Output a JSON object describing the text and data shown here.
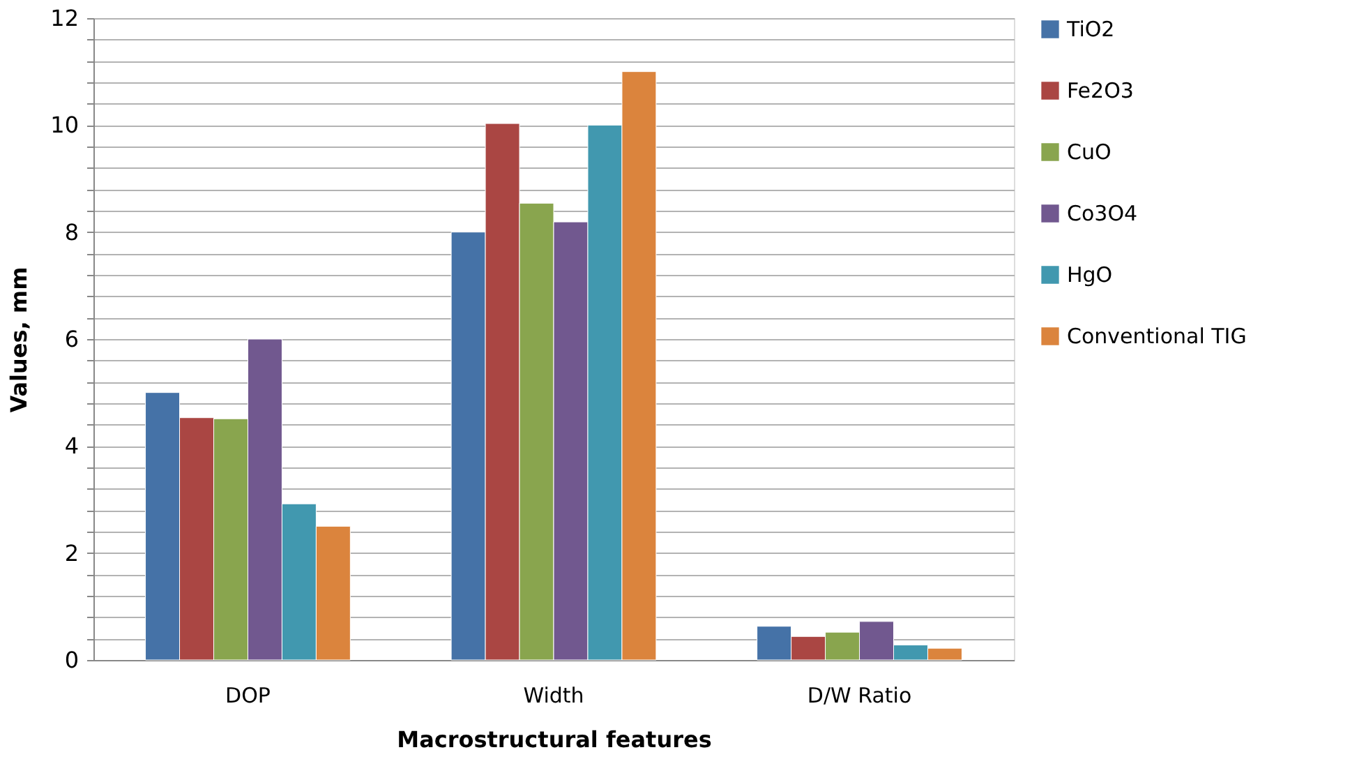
{
  "chart_data": {
    "type": "bar",
    "xlabel": "Macrostructural features",
    "ylabel": "Values, mm",
    "categories": [
      "DOP",
      "Width",
      "D/W Ratio"
    ],
    "series": [
      {
        "name": "TiO2",
        "color": "#4572a7",
        "values": [
          5.0,
          8.0,
          0.63
        ]
      },
      {
        "name": "Fe2O3",
        "color": "#aa4643",
        "values": [
          4.53,
          10.03,
          0.44
        ]
      },
      {
        "name": "CuO",
        "color": "#89a54e",
        "values": [
          4.51,
          8.54,
          0.52
        ]
      },
      {
        "name": "Co3O4",
        "color": "#71588f",
        "values": [
          6.0,
          8.19,
          0.72
        ]
      },
      {
        "name": "HgO",
        "color": "#4198af",
        "values": [
          2.92,
          10.0,
          0.28
        ]
      },
      {
        "name": "Conventional TIG",
        "color": "#db843d",
        "values": [
          2.5,
          11.0,
          0.22
        ]
      }
    ],
    "ylim": [
      0,
      12
    ],
    "yticks": [
      0,
      {
        "value": 0.4,
        "label": null
      },
      {
        "value": 0.8,
        "label": null
      },
      {
        "value": 1.2,
        "label": null
      },
      {
        "value": 1.6,
        "label": null
      },
      2,
      {
        "value": 2.4,
        "label": null
      },
      {
        "value": 2.8,
        "label": null
      },
      {
        "value": 3.2,
        "label": null
      },
      {
        "value": 3.6,
        "label": null
      },
      4,
      {
        "value": 4.4,
        "label": null
      },
      {
        "value": 4.8,
        "label": null
      },
      {
        "value": 5.2,
        "label": null
      },
      {
        "value": 5.6,
        "label": null
      },
      6,
      {
        "value": 6.4,
        "label": null
      },
      {
        "value": 6.8,
        "label": null
      },
      {
        "value": 7.2,
        "label": null
      },
      {
        "value": 7.6,
        "label": null
      },
      8,
      {
        "value": 8.4,
        "label": null
      },
      {
        "value": 8.8,
        "label": null
      },
      {
        "value": 9.2,
        "label": null
      },
      {
        "value": 9.6,
        "label": null
      },
      10,
      {
        "value": 10.4,
        "label": null
      },
      {
        "value": 10.8,
        "label": null
      },
      {
        "value": 11.2,
        "label": null
      },
      {
        "value": 11.6,
        "label": null
      },
      12
    ],
    "grid": "y",
    "legend": "right"
  }
}
